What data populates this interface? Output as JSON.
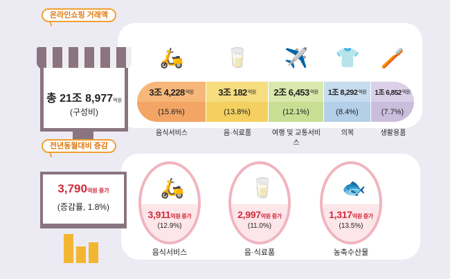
{
  "section1": {
    "tag": "온라인쇼핑 거래액",
    "total_prefix": "총 21조 8,977",
    "total_unit": "억원",
    "total_sub": "(구성비)",
    "items": [
      {
        "value": "3조 4,228",
        "unit": "억원",
        "pct": "(15.6%)",
        "label": "음식서비스",
        "color": "#f7b77a",
        "icon": "delivery-scooter-icon"
      },
      {
        "value": "3조 182",
        "unit": "억원",
        "pct": "(13.8%)",
        "label": "음·식료품",
        "color": "#f6d66f",
        "icon": "milk-bread-icon"
      },
      {
        "value": "2조 6,453",
        "unit": "억원",
        "pct": "(12.1%)",
        "label": "여행 및 교통서비스",
        "color": "#cbe09a",
        "icon": "calendar-airplane-icon"
      },
      {
        "value": "1조 8,292",
        "unit": "억원",
        "pct": "(8.4%)",
        "label": "의복",
        "color": "#b9d3ea",
        "icon": "tshirt-icon"
      },
      {
        "value": "1조 6,852",
        "unit": "억원",
        "pct": "(7.7%)",
        "label": "생활용품",
        "color": "#cfc3e0",
        "icon": "toothbrush-cup-icon"
      }
    ]
  },
  "section2": {
    "tag": "전년동월대비 증감",
    "total_value": "3,790",
    "total_unit": "억원 증가",
    "total_sub": "(증감률, 1.8%)",
    "items": [
      {
        "value": "3,911",
        "unit": "억원 증가",
        "pct": "(12.9%)",
        "label": "음식서비스",
        "icon": "delivery-scooter-icon"
      },
      {
        "value": "2,997",
        "unit": "억원 증가",
        "pct": "(11.0%)",
        "label": "음·식료품",
        "icon": "milk-bread-icon"
      },
      {
        "value": "1,317",
        "unit": "억원 증가",
        "pct": "(13.5%)",
        "label": "농축수산물",
        "icon": "fish-wheat-icon"
      }
    ]
  },
  "colors": {
    "accent": "#f0a030",
    "increase": "#d12a3a",
    "monitor": "#8a7480"
  }
}
